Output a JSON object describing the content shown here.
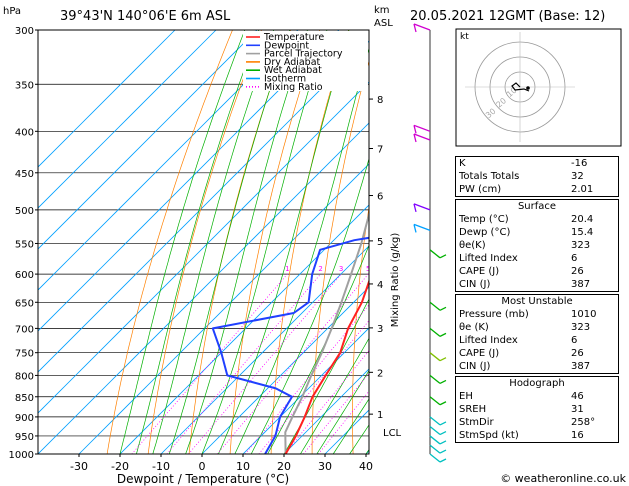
{
  "header": {
    "location": "39°43'N 140°06'E 6m ASL",
    "datetime": "20.05.2021 12GMT (Base: 12)",
    "hpa_unit": "hPa",
    "km_unit": "km",
    "asl_unit": "ASL"
  },
  "footer": {
    "credit": "© weatheronline.co.uk"
  },
  "legend": {
    "items": [
      {
        "label": "Temperature",
        "color": "#ff2020",
        "style": "solid"
      },
      {
        "label": "Dewpoint",
        "color": "#2040ff",
        "style": "solid"
      },
      {
        "label": "Parcel Trajectory",
        "color": "#a0a0a0",
        "style": "solid"
      },
      {
        "label": "Dry Adiabat",
        "color": "#ff8000",
        "style": "solid"
      },
      {
        "label": "Wet Adiabat",
        "color": "#00b000",
        "style": "solid"
      },
      {
        "label": "Isotherm",
        "color": "#00a0ff",
        "style": "solid"
      },
      {
        "label": "Mixing Ratio",
        "color": "#ff00ff",
        "style": "dotted"
      }
    ]
  },
  "chart_data": {
    "type": "skew-t",
    "xlabel": "Dewpoint / Temperature (°C)",
    "ylabel_right": "Mixing Ratio (g/kg)",
    "x_ticks": [
      -30,
      -20,
      -10,
      0,
      10,
      20,
      30,
      40
    ],
    "pressure_levels": [
      300,
      350,
      400,
      450,
      500,
      550,
      600,
      650,
      700,
      750,
      800,
      850,
      900,
      950,
      1000
    ],
    "height_km_ticks": [
      {
        "km": "1",
        "p": 893
      },
      {
        "km": "2",
        "p": 793
      },
      {
        "km": "3",
        "p": 699
      },
      {
        "km": "4",
        "p": 617
      },
      {
        "km": "5",
        "p": 546
      },
      {
        "km": "6",
        "p": 480
      },
      {
        "km": "7",
        "p": 420
      },
      {
        "km": "8",
        "p": 365
      }
    ],
    "lcl": {
      "label": "LCL",
      "p": 940
    },
    "mixing_ratio_labels": [
      "1",
      "2",
      "3",
      "5",
      "8",
      "10",
      "15",
      "20",
      "25"
    ],
    "temperature": [
      {
        "p": 1000,
        "t": 20.4
      },
      {
        "p": 950,
        "t": 18.5
      },
      {
        "p": 900,
        "t": 16.0
      },
      {
        "p": 850,
        "t": 13.0
      },
      {
        "p": 800,
        "t": 11.0
      },
      {
        "p": 750,
        "t": 9.0
      },
      {
        "p": 700,
        "t": 5.0
      },
      {
        "p": 650,
        "t": 2.0
      },
      {
        "p": 600,
        "t": -2.5
      },
      {
        "p": 550,
        "t": -7.0
      },
      {
        "p": 540,
        "t": -9.0
      },
      {
        "p": 530,
        "t": -9.5
      },
      {
        "p": 500,
        "t": -12.0
      },
      {
        "p": 450,
        "t": -18.0
      },
      {
        "p": 400,
        "t": -25.0
      },
      {
        "p": 350,
        "t": -33.0
      },
      {
        "p": 300,
        "t": -41.0
      }
    ],
    "dewpoint": [
      {
        "p": 1000,
        "t": 15.4
      },
      {
        "p": 950,
        "t": 13.5
      },
      {
        "p": 900,
        "t": 10.0
      },
      {
        "p": 850,
        "t": 8.0
      },
      {
        "p": 830,
        "t": 2.0
      },
      {
        "p": 800,
        "t": -13.0
      },
      {
        "p": 750,
        "t": -20.0
      },
      {
        "p": 700,
        "t": -28.0
      },
      {
        "p": 670,
        "t": -12.0
      },
      {
        "p": 650,
        "t": -11.0
      },
      {
        "p": 600,
        "t": -17.0
      },
      {
        "p": 560,
        "t": -21.0
      },
      {
        "p": 545,
        "t": -15.0
      },
      {
        "p": 540,
        "t": -11.0
      },
      {
        "p": 530,
        "t": -11.0
      },
      {
        "p": 500,
        "t": -13.5
      },
      {
        "p": 450,
        "t": -21.0
      },
      {
        "p": 400,
        "t": -29.0
      },
      {
        "p": 350,
        "t": -36.0
      },
      {
        "p": 300,
        "t": -44.0
      }
    ],
    "parcel": [
      {
        "p": 1000,
        "t": 20.4
      },
      {
        "p": 940,
        "t": 15.0
      },
      {
        "p": 900,
        "t": 13.0
      },
      {
        "p": 850,
        "t": 10.5
      },
      {
        "p": 800,
        "t": 7.5
      },
      {
        "p": 750,
        "t": 4.5
      },
      {
        "p": 700,
        "t": 1.0
      },
      {
        "p": 650,
        "t": -3.0
      },
      {
        "p": 600,
        "t": -7.5
      },
      {
        "p": 550,
        "t": -12.5
      },
      {
        "p": 500,
        "t": -18.5
      },
      {
        "p": 450,
        "t": -25.5
      },
      {
        "p": 400,
        "t": -33.0
      },
      {
        "p": 350,
        "t": -41.5
      },
      {
        "p": 300,
        "t": -51.0
      }
    ],
    "wind_barbs": [
      {
        "p": 300,
        "color": "#d000d0"
      },
      {
        "p": 400,
        "color": "#d000d0"
      },
      {
        "p": 410,
        "color": "#d000d0"
      },
      {
        "p": 500,
        "color": "#8000ff"
      },
      {
        "p": 530,
        "color": "#00a0ff"
      },
      {
        "p": 560,
        "color": "#00b000"
      },
      {
        "p": 650,
        "color": "#00b000"
      },
      {
        "p": 700,
        "color": "#00b000"
      },
      {
        "p": 750,
        "color": "#80c000"
      },
      {
        "p": 800,
        "color": "#00b000"
      },
      {
        "p": 850,
        "color": "#00b000"
      },
      {
        "p": 900,
        "color": "#00c0c0"
      },
      {
        "p": 925,
        "color": "#00c0c0"
      },
      {
        "p": 950,
        "color": "#00c0c0"
      },
      {
        "p": 975,
        "color": "#00c0c0"
      },
      {
        "p": 1000,
        "color": "#00c0c0"
      }
    ]
  },
  "hodograph": {
    "unit_label": "kt",
    "ring_labels": [
      "10",
      "20",
      "30"
    ]
  },
  "indices": {
    "top": [
      {
        "label": "K",
        "value": "-16"
      },
      {
        "label": "Totals Totals",
        "value": "32"
      },
      {
        "label": "PW (cm)",
        "value": "2.01"
      }
    ],
    "surface": {
      "title": "Surface",
      "rows": [
        {
          "label": "Temp (°C)",
          "value": "20.4"
        },
        {
          "label": "Dewp (°C)",
          "value": "15.4"
        },
        {
          "label": "θe(K)",
          "value": "323"
        },
        {
          "label": "Lifted Index",
          "value": "6"
        },
        {
          "label": "CAPE (J)",
          "value": "26"
        },
        {
          "label": "CIN (J)",
          "value": "387"
        }
      ]
    },
    "unstable": {
      "title": "Most Unstable",
      "rows": [
        {
          "label": "Pressure (mb)",
          "value": "1010"
        },
        {
          "label": "θe (K)",
          "value": "323"
        },
        {
          "label": "Lifted Index",
          "value": "6"
        },
        {
          "label": "CAPE (J)",
          "value": "26"
        },
        {
          "label": "CIN (J)",
          "value": "387"
        }
      ]
    },
    "hodograph": {
      "title": "Hodograph",
      "rows": [
        {
          "label": "EH",
          "value": "46"
        },
        {
          "label": "SREH",
          "value": "31"
        },
        {
          "label": "StmDir",
          "value": "258°"
        },
        {
          "label": "StmSpd (kt)",
          "value": "16"
        }
      ]
    }
  }
}
